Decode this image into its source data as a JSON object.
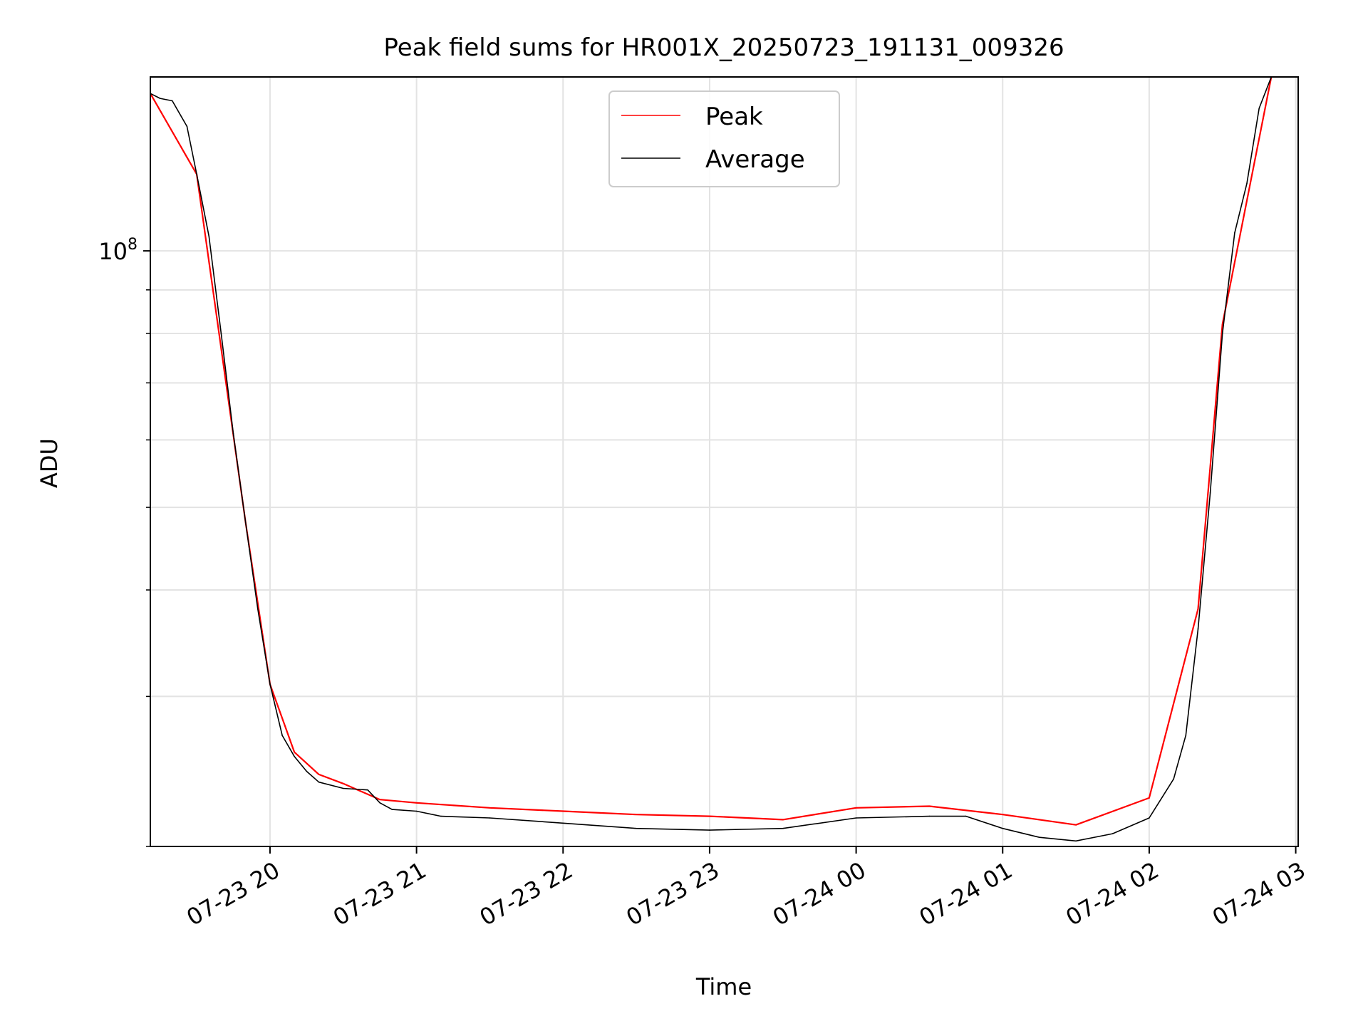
{
  "chart_data": {
    "type": "line",
    "title": "Peak field sums for HR001X_20250723_191131_009326",
    "xlabel": "Time",
    "ylabel": "ADU",
    "y_scale": "log",
    "grid": true,
    "legend_position": "upper center",
    "xlim": [
      "2025-07-23 19:11",
      "2025-07-24 03:01"
    ],
    "ylim": [
      20000000,
      160000000
    ],
    "x_ticks": [
      {
        "value": "2025-07-23 20:00",
        "label": "07-23 20"
      },
      {
        "value": "2025-07-23 21:00",
        "label": "07-23 21"
      },
      {
        "value": "2025-07-23 22:00",
        "label": "07-23 22"
      },
      {
        "value": "2025-07-23 23:00",
        "label": "07-23 23"
      },
      {
        "value": "2025-07-24 00:00",
        "label": "07-24 00"
      },
      {
        "value": "2025-07-24 01:00",
        "label": "07-24 01"
      },
      {
        "value": "2025-07-24 02:00",
        "label": "07-24 02"
      },
      {
        "value": "2025-07-24 03:00",
        "label": "07-24 03"
      }
    ],
    "y_major_ticks": [
      {
        "value": 100000000,
        "label_base": "10",
        "label_exp": "8"
      }
    ],
    "y_minor_ticks": [
      20000000,
      30000000,
      40000000,
      50000000,
      60000000,
      70000000,
      80000000,
      90000000,
      200000000
    ],
    "series": [
      {
        "name": "Average",
        "color": "#000000",
        "x": [
          "2025-07-23 19:11",
          "2025-07-23 19:15",
          "2025-07-23 19:20",
          "2025-07-23 19:26",
          "2025-07-23 19:30",
          "2025-07-23 19:35",
          "2025-07-23 19:40",
          "2025-07-23 19:45",
          "2025-07-23 19:50",
          "2025-07-23 19:55",
          "2025-07-23 20:00",
          "2025-07-23 20:05",
          "2025-07-23 20:10",
          "2025-07-23 20:15",
          "2025-07-23 20:20",
          "2025-07-23 20:30",
          "2025-07-23 20:40",
          "2025-07-23 20:45",
          "2025-07-23 20:50",
          "2025-07-23 21:00",
          "2025-07-23 21:10",
          "2025-07-23 21:30",
          "2025-07-23 22:00",
          "2025-07-23 22:30",
          "2025-07-23 23:00",
          "2025-07-23 23:30",
          "2025-07-24 00:00",
          "2025-07-24 00:30",
          "2025-07-24 00:45",
          "2025-07-24 01:00",
          "2025-07-24 01:15",
          "2025-07-24 01:30",
          "2025-07-24 01:45",
          "2025-07-24 02:00",
          "2025-07-24 02:10",
          "2025-07-24 02:15",
          "2025-07-24 02:20",
          "2025-07-24 02:25",
          "2025-07-24 02:30",
          "2025-07-24 02:35",
          "2025-07-24 02:40",
          "2025-07-24 02:45",
          "2025-07-24 02:50"
        ],
        "values": [
          153000000,
          151000000,
          150000000,
          140000000,
          123000000,
          104000000,
          80000000,
          61000000,
          48000000,
          38000000,
          31000000,
          27000000,
          25500000,
          24500000,
          23800000,
          23400000,
          23300000,
          22500000,
          22100000,
          22000000,
          21700000,
          21600000,
          21300000,
          21000000,
          20900000,
          21000000,
          21600000,
          21700000,
          21700000,
          21000000,
          20500000,
          20300000,
          20700000,
          21600000,
          24000000,
          27000000,
          36000000,
          52000000,
          80000000,
          105000000,
          120000000,
          147000000,
          160000000
        ]
      },
      {
        "name": "Peak",
        "color": "#ff0000",
        "x": [
          "2025-07-23 19:11",
          "2025-07-23 19:30",
          "2025-07-23 19:50",
          "2025-07-23 20:00",
          "2025-07-23 20:10",
          "2025-07-23 20:20",
          "2025-07-23 20:30",
          "2025-07-23 20:45",
          "2025-07-23 21:00",
          "2025-07-23 21:30",
          "2025-07-23 22:00",
          "2025-07-23 22:30",
          "2025-07-23 23:00",
          "2025-07-23 23:30",
          "2025-07-24 00:00",
          "2025-07-24 00:30",
          "2025-07-24 01:00",
          "2025-07-24 01:30",
          "2025-07-24 02:00",
          "2025-07-24 02:20",
          "2025-07-24 02:30",
          "2025-07-24 02:50"
        ],
        "values": [
          153000000,
          123000000,
          48000000,
          31000000,
          25800000,
          24300000,
          23700000,
          22700000,
          22500000,
          22200000,
          22000000,
          21800000,
          21700000,
          21500000,
          22200000,
          22300000,
          21800000,
          21200000,
          22800000,
          38000000,
          82000000,
          160000000
        ]
      }
    ]
  }
}
